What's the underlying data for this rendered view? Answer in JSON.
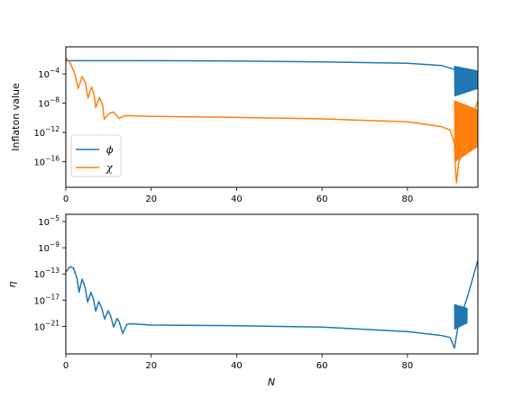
{
  "chart_data": [
    {
      "type": "line",
      "title": "",
      "xlabel": "",
      "ylabel": "Inflaton value",
      "yscale": "log",
      "xlim": [
        0,
        96.5
      ],
      "ylim_exp": [
        -19.5,
        -0.3
      ],
      "x_ticks": [
        0,
        20,
        40,
        60,
        80
      ],
      "y_ticks": [
        -4,
        -8,
        -12,
        -16
      ],
      "legend": {
        "placement": "lower-left"
      },
      "series": [
        {
          "name": "ϕ",
          "color": "#1f77b4",
          "points": [
            [
              0,
              -2.2
            ],
            [
              20,
              -2.2
            ],
            [
              40,
              -2.25
            ],
            [
              60,
              -2.35
            ],
            [
              80,
              -2.55
            ],
            [
              88,
              -2.85
            ],
            [
              91,
              -3.4
            ],
            [
              92,
              -4.5
            ],
            [
              93,
              -5.6
            ],
            [
              94,
              -5.2
            ],
            [
              95,
              -4.6
            ],
            [
              96.5,
              -3.7
            ]
          ],
          "osc_band": [
            91,
            96.5,
            -7.1,
            -2.9
          ]
        },
        {
          "name": "χ",
          "color": "#ff7f0e",
          "points": [
            [
              0,
              -1.8
            ],
            [
              1,
              -2.5
            ],
            [
              2,
              -3.8
            ],
            [
              2.9,
              -6.0
            ],
            [
              3.8,
              -4.4
            ],
            [
              4.6,
              -5.2
            ],
            [
              5.2,
              -7.3
            ],
            [
              6.0,
              -5.8
            ],
            [
              6.6,
              -6.8
            ],
            [
              7.0,
              -8.6
            ],
            [
              7.9,
              -7.2
            ],
            [
              8.6,
              -8.2
            ],
            [
              9.0,
              -10.2
            ],
            [
              10.2,
              -9.4
            ],
            [
              11.2,
              -9.2
            ],
            [
              12.5,
              -10.1
            ],
            [
              13,
              -9.9
            ],
            [
              14,
              -9.7
            ],
            [
              20,
              -9.8
            ],
            [
              40,
              -9.95
            ],
            [
              60,
              -10.15
            ],
            [
              80,
              -10.55
            ],
            [
              88,
              -11.2
            ],
            [
              90,
              -11.7
            ],
            [
              91,
              -13.5
            ],
            [
              91.2,
              -16.7
            ],
            [
              91.5,
              -18.9
            ],
            [
              92,
              -16.1
            ],
            [
              93.5,
              -13.8
            ],
            [
              96.5,
              -7.6
            ]
          ],
          "osc_band": [
            91,
            96.5,
            -16.1,
            -7.6
          ]
        }
      ]
    },
    {
      "type": "line",
      "title": "",
      "xlabel": "N",
      "ylabel": "η",
      "yscale": "log",
      "xlim": [
        0,
        96.5
      ],
      "ylim_exp": [
        -25.2,
        -3.9
      ],
      "x_ticks": [
        0,
        20,
        40,
        60,
        80
      ],
      "y_ticks": [
        -5,
        -9,
        -13,
        -17,
        -21
      ],
      "series": [
        {
          "name": "η",
          "color": "#1f77b4",
          "points": [
            [
              0,
              -12.7
            ],
            [
              1,
              -11.9
            ],
            [
              1.8,
              -12.1
            ],
            [
              2.6,
              -13.6
            ],
            [
              3.1,
              -15.8
            ],
            [
              3.8,
              -13.8
            ],
            [
              4.5,
              -15.0
            ],
            [
              5.1,
              -17.3
            ],
            [
              5.9,
              -15.8
            ],
            [
              6.5,
              -16.9
            ],
            [
              7,
              -18.7
            ],
            [
              7.7,
              -17.2
            ],
            [
              8.4,
              -18.2
            ],
            [
              9.1,
              -19.9
            ],
            [
              9.9,
              -18.6
            ],
            [
              10.5,
              -19.4
            ],
            [
              11.2,
              -21.1
            ],
            [
              12.0,
              -19.8
            ],
            [
              12.5,
              -20.3
            ],
            [
              13.3,
              -22.1
            ],
            [
              14.3,
              -20.7
            ],
            [
              15.2,
              -20.6
            ],
            [
              20,
              -20.8
            ],
            [
              40,
              -20.9
            ],
            [
              60,
              -21.1
            ],
            [
              80,
              -21.8
            ],
            [
              88,
              -22.4
            ],
            [
              90,
              -22.7
            ],
            [
              91,
              -24.3
            ],
            [
              92,
              -20.4
            ],
            [
              94,
              -16.6
            ],
            [
              96.5,
              -10.9
            ]
          ],
          "osc_band": [
            91,
            94,
            -21.5,
            -17.6
          ]
        }
      ]
    }
  ]
}
